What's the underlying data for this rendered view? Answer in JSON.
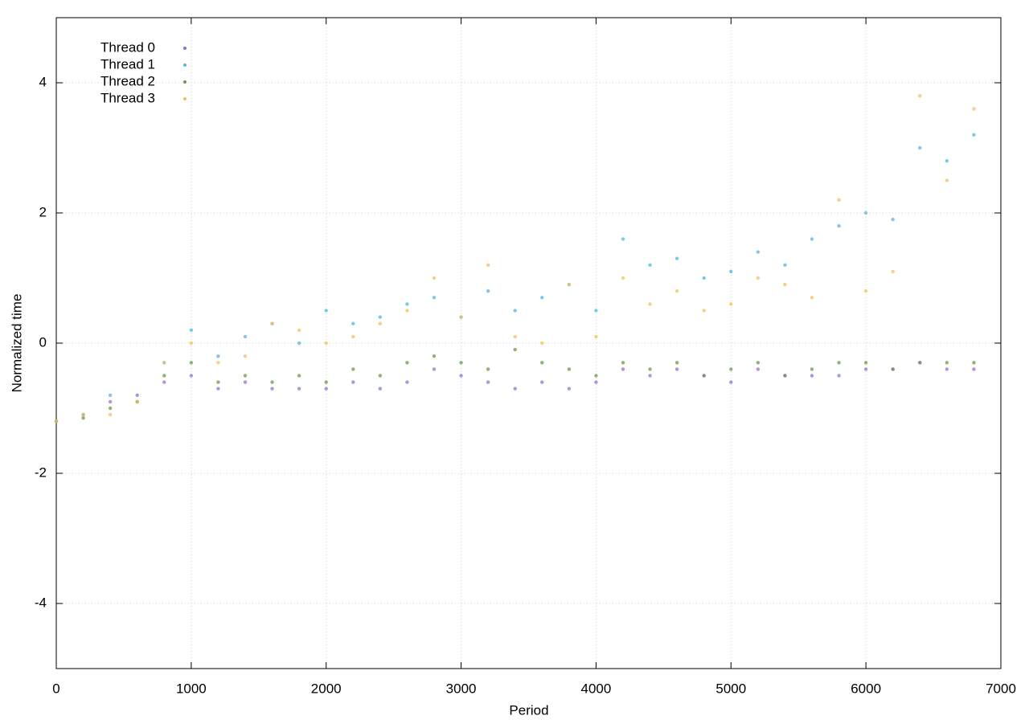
{
  "chart_data": {
    "type": "scatter",
    "xlabel": "Period",
    "ylabel": "Normalized time",
    "x": [
      0,
      200,
      400,
      600,
      800,
      1000,
      1200,
      1400,
      1600,
      1800,
      2000,
      2200,
      2400,
      2600,
      2800,
      3000,
      3200,
      3400,
      3600,
      3800,
      4000,
      4200,
      4400,
      4600,
      4800,
      5000,
      5200,
      5400,
      5600,
      5800,
      6000,
      6200,
      6400,
      6600,
      6800
    ],
    "series": [
      {
        "name": "Thread 0",
        "color": "#9370db",
        "values": [
          -1.2,
          -1.1,
          -0.9,
          -0.8,
          -0.6,
          -0.5,
          -0.7,
          -0.6,
          -0.7,
          -0.7,
          -0.7,
          -0.6,
          -0.7,
          -0.6,
          -0.4,
          -0.5,
          -0.6,
          -0.7,
          -0.6,
          -0.7,
          -0.6,
          -0.4,
          -0.5,
          -0.4,
          -0.5,
          -0.6,
          -0.4,
          -0.5,
          -0.5,
          -0.5,
          -0.4,
          -0.4,
          -0.3,
          -0.4,
          -0.4
        ]
      },
      {
        "name": "Thread 1",
        "color": "#56b4e9",
        "values": [
          -1.2,
          -1.1,
          -0.8,
          -0.9,
          -0.3,
          0.2,
          -0.2,
          0.1,
          0.3,
          0.0,
          0.5,
          0.3,
          0.4,
          0.6,
          0.7,
          0.4,
          0.8,
          0.5,
          0.7,
          0.9,
          0.5,
          1.6,
          1.2,
          1.3,
          1.0,
          1.1,
          1.4,
          1.2,
          1.6,
          1.8,
          2.0,
          1.9,
          3.0,
          2.8,
          3.2
        ]
      },
      {
        "name": "Thread 2",
        "color": "#6a9a4a",
        "values": [
          -1.2,
          -1.15,
          -1.0,
          -0.9,
          -0.5,
          -0.3,
          -0.6,
          -0.5,
          -0.6,
          -0.5,
          -0.6,
          -0.4,
          -0.5,
          -0.3,
          -0.2,
          -0.3,
          -0.4,
          -0.1,
          -0.3,
          -0.4,
          -0.5,
          -0.3,
          -0.4,
          -0.3,
          -0.5,
          -0.4,
          -0.3,
          -0.5,
          -0.4,
          -0.3,
          -0.3,
          -0.4,
          -0.3,
          -0.3,
          -0.3
        ]
      },
      {
        "name": "Thread 3",
        "color": "#f0c060",
        "values": [
          -1.2,
          -1.1,
          -1.1,
          -0.9,
          -0.3,
          0.0,
          -0.3,
          -0.2,
          0.3,
          0.2,
          0.0,
          0.1,
          0.3,
          0.5,
          1.0,
          0.4,
          1.2,
          0.1,
          0.0,
          0.9,
          0.1,
          1.0,
          0.6,
          0.8,
          0.5,
          0.6,
          1.0,
          0.9,
          0.7,
          2.2,
          0.8,
          1.1,
          3.8,
          2.5,
          3.6
        ]
      }
    ],
    "xlim": [
      0,
      7000
    ],
    "xticks": [
      0,
      1000,
      2000,
      3000,
      4000,
      5000,
      6000,
      7000
    ],
    "ylim": [
      -5,
      5
    ],
    "yticks": [
      -4,
      -2,
      0,
      2,
      4
    ],
    "grid": true,
    "legend": "top-left"
  }
}
